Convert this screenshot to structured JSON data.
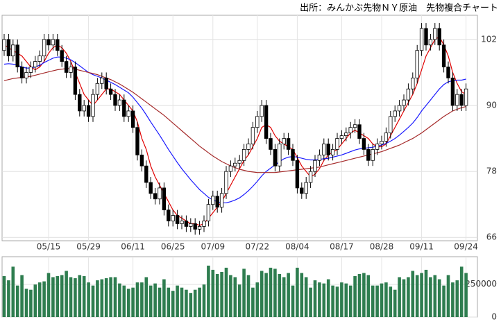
{
  "chart_data": [
    {
      "type": "candlestick",
      "title": "出所：みんかぶ先物ＮＹ原油　先物複合チャート",
      "categories": [
        null,
        null,
        null,
        null,
        null,
        null,
        null,
        null,
        null,
        null,
        "05/15",
        null,
        null,
        null,
        null,
        null,
        null,
        null,
        null,
        "05/29",
        null,
        null,
        null,
        null,
        null,
        null,
        null,
        null,
        null,
        "06/11",
        null,
        null,
        null,
        null,
        null,
        null,
        null,
        null,
        "06/25",
        null,
        null,
        null,
        null,
        null,
        null,
        null,
        null,
        "07/09",
        null,
        null,
        null,
        null,
        null,
        null,
        null,
        null,
        null,
        "07/22",
        null,
        null,
        null,
        null,
        null,
        null,
        null,
        null,
        "08/04",
        null,
        null,
        null,
        null,
        null,
        null,
        null,
        null,
        null,
        "08/17",
        null,
        null,
        null,
        null,
        null,
        null,
        null,
        null,
        "08/28",
        null,
        null,
        null,
        null,
        null,
        null,
        null,
        null,
        "09/11",
        null,
        null,
        null,
        null,
        null,
        null,
        null,
        null,
        null,
        "09/24"
      ],
      "open": [
        100,
        102,
        99,
        101,
        97,
        95,
        96,
        97,
        98,
        99,
        102,
        101,
        102,
        100,
        98,
        96,
        97,
        92,
        89,
        90,
        88,
        92,
        94,
        95,
        93,
        92,
        90,
        91,
        88,
        89,
        86,
        81,
        79,
        76,
        74,
        73,
        75,
        71,
        69,
        70,
        68.5,
        69,
        68,
        68.5,
        67.5,
        68,
        69,
        72,
        73.5,
        71.5,
        74,
        78,
        79,
        79.5,
        80,
        82,
        83,
        86,
        88,
        90,
        84,
        82,
        79,
        83,
        84,
        82,
        80,
        75,
        74,
        76,
        78,
        80,
        81,
        83,
        81,
        82,
        84,
        84.5,
        85,
        86,
        86.5,
        84,
        82,
        80,
        82,
        83,
        83.5,
        85,
        88,
        89,
        90,
        91,
        93,
        95,
        100,
        104,
        101,
        102,
        104,
        101,
        97,
        95,
        90,
        92,
        90
      ],
      "high": [
        103,
        103,
        102,
        102,
        98,
        97,
        98,
        99,
        100,
        103,
        103,
        103,
        103,
        101,
        99,
        98,
        98,
        93,
        91,
        91,
        93,
        95,
        96,
        96,
        94,
        93,
        92,
        92,
        90,
        90,
        87,
        82,
        80,
        77,
        75,
        76,
        76,
        72,
        71,
        71,
        70,
        70,
        69.5,
        69.5,
        69,
        70,
        73,
        74.5,
        74.5,
        75,
        79,
        80,
        80.5,
        81,
        83,
        84,
        87,
        89,
        91,
        91,
        85,
        83,
        84,
        85,
        85,
        83,
        81,
        76,
        77,
        79,
        81,
        82,
        84,
        84,
        83,
        85,
        85.5,
        86,
        87,
        87.5,
        87.5,
        85,
        83,
        83,
        84,
        84.5,
        86,
        89,
        90,
        91,
        92,
        94,
        96,
        101,
        105,
        105,
        103,
        105,
        105,
        102,
        98,
        96,
        93,
        93,
        94
      ],
      "low": [
        99,
        98,
        98,
        96,
        94,
        94,
        95,
        96,
        97,
        98,
        100,
        100,
        99,
        97,
        95,
        95,
        91,
        88,
        88,
        87,
        87,
        91,
        93,
        92,
        91,
        89,
        89,
        87,
        87,
        85,
        80,
        78,
        75,
        73,
        72,
        72,
        70,
        68,
        68,
        67.5,
        67.5,
        67,
        67,
        66.5,
        66.5,
        67,
        68,
        71,
        70.5,
        70.5,
        73,
        77,
        78,
        78.5,
        79,
        81,
        82,
        85,
        87,
        83,
        81,
        78,
        78,
        82,
        81,
        79,
        74,
        73,
        73,
        75,
        77,
        79,
        80,
        80,
        80,
        81,
        83,
        83.5,
        84,
        85,
        83,
        81,
        79,
        79,
        81,
        82,
        82.5,
        84,
        87,
        88,
        89,
        90,
        92,
        94,
        99,
        100,
        100,
        101,
        100,
        96,
        94,
        89,
        89,
        89,
        89
      ],
      "close": [
        102,
        99,
        101,
        97,
        95,
        96,
        97,
        98,
        99,
        102,
        101,
        102,
        100,
        98,
        96,
        97,
        92,
        89,
        90,
        88,
        92,
        94,
        95,
        93,
        92,
        90,
        91,
        88,
        89,
        86,
        81,
        79,
        76,
        74,
        73,
        75,
        71,
        69,
        70,
        68.5,
        69,
        68,
        68.5,
        67.5,
        68,
        69,
        72,
        73.5,
        71.5,
        74,
        78,
        79,
        79.5,
        80,
        82,
        83,
        86,
        88,
        90,
        84,
        82,
        79,
        83,
        84,
        82,
        80,
        75,
        74,
        76,
        78,
        80,
        81,
        83,
        81,
        82,
        84,
        84.5,
        85,
        86,
        86.5,
        84,
        82,
        80,
        82,
        83,
        83.5,
        85,
        88,
        89,
        90,
        91,
        93,
        95,
        100,
        104,
        101,
        102,
        104,
        101,
        97,
        95,
        90,
        92,
        90,
        93
      ],
      "up_color": "#ffffff",
      "down_color": "#000000",
      "lines": [
        {
          "color": "#e00000",
          "values": [
            101,
            100.5,
            100,
            99.5,
            99,
            98,
            97,
            96.5,
            97,
            98,
            99.5,
            100.5,
            101,
            100.5,
            99.5,
            98,
            96,
            94,
            92,
            91,
            90,
            91,
            92,
            93,
            93,
            92.5,
            92,
            91,
            90,
            89,
            87,
            84,
            82,
            79,
            77,
            75.5,
            74,
            72.5,
            71,
            70,
            69.5,
            69,
            68.5,
            68.5,
            68.2,
            68.5,
            69.5,
            70.5,
            71.5,
            72.5,
            74,
            75.5,
            77,
            78.5,
            80,
            81,
            82.5,
            84,
            86,
            86.5,
            86,
            84.5,
            83.5,
            83,
            82.5,
            82,
            80.5,
            79,
            78,
            77,
            77.5,
            78.5,
            80,
            81,
            81.5,
            82,
            83,
            84,
            85,
            85.5,
            85,
            84.5,
            84,
            83,
            82.5,
            82.5,
            83,
            84.5,
            86,
            87.5,
            89,
            90.5,
            92,
            94,
            96.5,
            99,
            100.5,
            102,
            102.5,
            101,
            99,
            96,
            94,
            92.5,
            92
          ]
        },
        {
          "color": "#1a1aff",
          "values": [
            97.5,
            97.6,
            97.5,
            97.3,
            97,
            96.8,
            96.8,
            97,
            97.3,
            97.8,
            98.2,
            98.6,
            98.8,
            98.8,
            98.6,
            98.3,
            97.8,
            97.2,
            96.6,
            96,
            95.6,
            95.3,
            95,
            94.6,
            94.2,
            93.8,
            93.3,
            92.8,
            92.3,
            91.5,
            90.5,
            89.5,
            88.3,
            87,
            85.8,
            84.6,
            83.3,
            82,
            80.8,
            79.6,
            78.5,
            77.5,
            76.5,
            75.6,
            74.7,
            74,
            73.3,
            72.8,
            72.5,
            72.3,
            72.3,
            72.5,
            72.8,
            73.2,
            73.8,
            74.5,
            75.3,
            76.2,
            77.2,
            78,
            78.6,
            79.2,
            79.8,
            80.3,
            80.6,
            80.7,
            80.6,
            80.4,
            80.2,
            80.1,
            80.1,
            80.2,
            80.3,
            80.4,
            80.6,
            80.8,
            81,
            81.3,
            81.6,
            81.9,
            82.1,
            82.2,
            82.3,
            82.4,
            82.6,
            82.8,
            83.1,
            83.5,
            84,
            84.6,
            85.3,
            86,
            86.8,
            87.8,
            89,
            90,
            91,
            92,
            93,
            93.8,
            94.3,
            94.5,
            94.6,
            94.6,
            94.8
          ]
        },
        {
          "color": "#a52a2a",
          "values": [
            94.5,
            94.7,
            94.9,
            95,
            95.1,
            95.2,
            95.3,
            95.5,
            95.7,
            95.9,
            96.1,
            96.3,
            96.5,
            96.6,
            96.7,
            96.7,
            96.6,
            96.4,
            96.2,
            96,
            95.8,
            95.6,
            95.3,
            95,
            94.7,
            94.3,
            93.9,
            93.4,
            92.9,
            92.4,
            91.8,
            91.2,
            90.6,
            90,
            89.4,
            88.8,
            88.2,
            87.5,
            86.8,
            86.1,
            85.4,
            84.7,
            84,
            83.3,
            82.6,
            82,
            81.4,
            80.8,
            80.3,
            79.8,
            79.4,
            79,
            78.7,
            78.4,
            78.2,
            78,
            77.9,
            77.8,
            77.8,
            77.8,
            77.8,
            77.8,
            77.9,
            78,
            78.1,
            78.2,
            78.3,
            78.4,
            78.5,
            78.6,
            78.7,
            78.8,
            79,
            79.2,
            79.4,
            79.6,
            79.8,
            80,
            80.2,
            80.4,
            80.6,
            80.8,
            81,
            81.2,
            81.4,
            81.6,
            81.9,
            82.2,
            82.5,
            82.8,
            83.2,
            83.6,
            84,
            84.5,
            85,
            85.6,
            86.2,
            86.8,
            87.4,
            88,
            88.5,
            89,
            89.3,
            89.6,
            89.8
          ]
        }
      ],
      "ylim": [
        65.4,
        106.4
      ],
      "yticks": [
        66,
        78,
        90,
        102
      ],
      "grid": true
    },
    {
      "type": "bar",
      "color": "#2e7d4f",
      "values": [
        312000,
        280000,
        384000,
        240000,
        320000,
        216000,
        208000,
        248000,
        264000,
        272000,
        336000,
        304000,
        312000,
        320000,
        352000,
        304000,
        296000,
        320000,
        312000,
        264000,
        240000,
        280000,
        288000,
        296000,
        304000,
        304000,
        256000,
        240000,
        216000,
        224000,
        264000,
        264000,
        304000,
        240000,
        256000,
        224000,
        288000,
        224000,
        200000,
        240000,
        224000,
        208000,
        184000,
        208000,
        224000,
        248000,
        392000,
        360000,
        328000,
        344000,
        376000,
        320000,
        304000,
        248000,
        368000,
        320000,
        224000,
        264000,
        352000,
        336000,
        376000,
        368000,
        328000,
        304000,
        336000,
        240000,
        376000,
        336000,
        304000,
        224000,
        280000,
        264000,
        256000,
        288000,
        240000,
        232000,
        264000,
        256000,
        240000,
        312000,
        328000,
        336000,
        320000,
        240000,
        240000,
        256000,
        264000,
        232000,
        208000,
        304000,
        288000,
        304000,
        352000,
        320000,
        336000,
        360000,
        304000,
        320000,
        288000,
        240000,
        320000,
        264000,
        280000,
        384000,
        336000
      ],
      "ylim": [
        0,
        460000
      ],
      "yticks": [
        0,
        250000
      ],
      "grid": true
    }
  ]
}
